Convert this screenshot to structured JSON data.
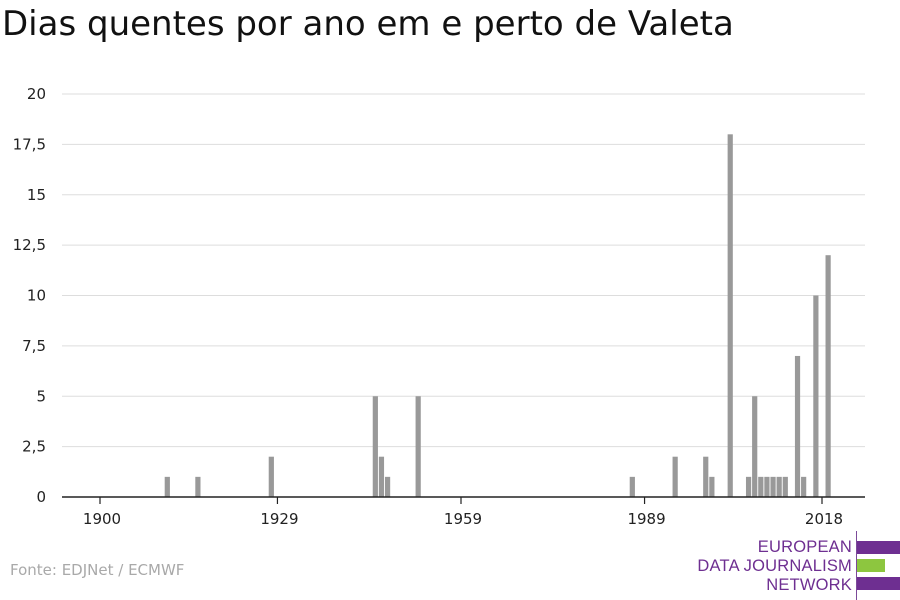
{
  "title": "Dias quentes por ano em e perto de Valeta",
  "source": "Fonte: EDJNet / ECMWF",
  "logo": {
    "lines": [
      "EUROPEAN",
      "DATA JOURNALISM",
      "NETWORK"
    ],
    "colors": {
      "purple": "#6e2f91",
      "green": "#8dc63f"
    }
  },
  "colors": {
    "bar": "#999999",
    "grid": "#dddddd",
    "axis": "#222222",
    "tick_text": "#222222"
  },
  "chart_data": {
    "type": "bar",
    "title": "Dias quentes por ano em e perto de Valeta",
    "xlabel": "",
    "ylabel": "",
    "x_range": [
      1900,
      2018
    ],
    "ylim": [
      0,
      20
    ],
    "x_ticks": [
      1900,
      1929,
      1959,
      1989,
      2018
    ],
    "x_tick_labels": [
      "1900",
      "1929",
      "1959",
      "1989",
      "2018"
    ],
    "y_ticks": [
      0,
      2.5,
      5,
      7.5,
      10,
      12.5,
      15,
      17.5,
      20
    ],
    "y_tick_labels": [
      "0",
      "2,5",
      "5",
      "7,5",
      "10",
      "12,5",
      "15",
      "17,5",
      "20"
    ],
    "grid": true,
    "legend": "none",
    "x": [
      1911,
      1916,
      1928,
      1945,
      1946,
      1947,
      1952,
      1987,
      1994,
      1999,
      2000,
      2003,
      2006,
      2007,
      2008,
      2009,
      2010,
      2011,
      2012,
      2014,
      2015,
      2017,
      2019
    ],
    "values": [
      1,
      1,
      2,
      5,
      2,
      1,
      5,
      1,
      2,
      2,
      1,
      18,
      1,
      5,
      1,
      1,
      1,
      1,
      1,
      7,
      1,
      10,
      12
    ]
  }
}
